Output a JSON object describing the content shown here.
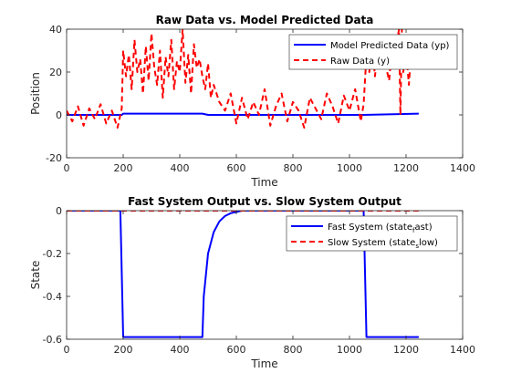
{
  "chart_data": [
    {
      "type": "line",
      "title": "Raw Data vs. Model Predicted Data",
      "xlabel": "Time",
      "ylabel": "Position",
      "xlim": [
        0,
        1400
      ],
      "ylim": [
        -20,
        40
      ],
      "xticks": [
        0,
        200,
        400,
        600,
        800,
        1000,
        1200,
        1400
      ],
      "yticks": [
        -20,
        0,
        20,
        40
      ],
      "legend_position": "top-right",
      "grid": false,
      "series": [
        {
          "name": "Model Predicted Data (yp)",
          "color": "#0000ff",
          "style": "solid",
          "x": [
            0,
            195,
            200,
            480,
            500,
            1050,
            1245
          ],
          "y": [
            0,
            0,
            0.6,
            0.6,
            0,
            0,
            0.6
          ]
        },
        {
          "name": "Raw Data (y)",
          "color": "#ff0000",
          "style": "dashed",
          "x": [
            0,
            20,
            40,
            60,
            80,
            100,
            120,
            140,
            160,
            180,
            195,
            200,
            210,
            220,
            230,
            240,
            250,
            260,
            270,
            280,
            290,
            300,
            310,
            320,
            330,
            340,
            350,
            360,
            370,
            380,
            390,
            400,
            410,
            420,
            430,
            440,
            450,
            460,
            470,
            480,
            490,
            500,
            510,
            520,
            540,
            560,
            580,
            600,
            620,
            640,
            660,
            680,
            700,
            720,
            740,
            760,
            780,
            800,
            820,
            840,
            860,
            880,
            900,
            920,
            940,
            960,
            980,
            1000,
            1020,
            1040,
            1050,
            1060,
            1070,
            1080,
            1090,
            1100,
            1110,
            1120,
            1130,
            1140,
            1150,
            1160,
            1170,
            1175,
            1180,
            1185,
            1190,
            1200,
            1210,
            1220,
            1230,
            1245
          ],
          "y": [
            2,
            -3,
            4,
            -5,
            3,
            -2,
            5,
            -4,
            2,
            -6,
            3,
            30,
            18,
            28,
            12,
            35,
            20,
            26,
            10,
            32,
            16,
            38,
            22,
            14,
            30,
            8,
            27,
            18,
            35,
            12,
            25,
            20,
            40,
            15,
            28,
            10,
            33,
            22,
            26,
            18,
            12,
            24,
            8,
            14,
            6,
            2,
            10,
            -4,
            8,
            -2,
            6,
            0,
            12,
            -5,
            4,
            10,
            -3,
            6,
            2,
            -6,
            8,
            3,
            -2,
            10,
            4,
            -4,
            9,
            2,
            12,
            -3,
            5,
            28,
            20,
            34,
            18,
            30,
            24,
            38,
            22,
            16,
            30,
            26,
            36,
            40,
            0,
            40,
            20,
            30,
            14,
            34,
            22,
            26
          ]
        }
      ]
    },
    {
      "type": "line",
      "title": "Fast System Output vs. Slow System Output",
      "xlabel": "Time",
      "ylabel": "State",
      "xlim": [
        0,
        1400
      ],
      "ylim": [
        -0.6,
        0
      ],
      "xticks": [
        0,
        200,
        400,
        600,
        800,
        1000,
        1200,
        1400
      ],
      "yticks": [
        -0.6,
        -0.4,
        -0.2,
        0
      ],
      "legend_position": "top-right",
      "grid": false,
      "series": [
        {
          "name": "Fast System (state",
          "name_sub": "f",
          "name_tail": "ast)",
          "color": "#0000ff",
          "style": "solid",
          "x": [
            0,
            190,
            200,
            480,
            485,
            500,
            520,
            540,
            560,
            580,
            600,
            620,
            1050,
            1060,
            1245
          ],
          "y": [
            0,
            0,
            -0.59,
            -0.59,
            -0.4,
            -0.2,
            -0.1,
            -0.05,
            -0.025,
            -0.012,
            -0.006,
            0,
            0,
            -0.59,
            -0.59
          ]
        },
        {
          "name": "Slow System (state",
          "name_sub": "s",
          "name_tail": "low)",
          "color": "#ff0000",
          "style": "dashed",
          "x": [
            0,
            1245
          ],
          "y": [
            0,
            0
          ]
        }
      ]
    }
  ]
}
